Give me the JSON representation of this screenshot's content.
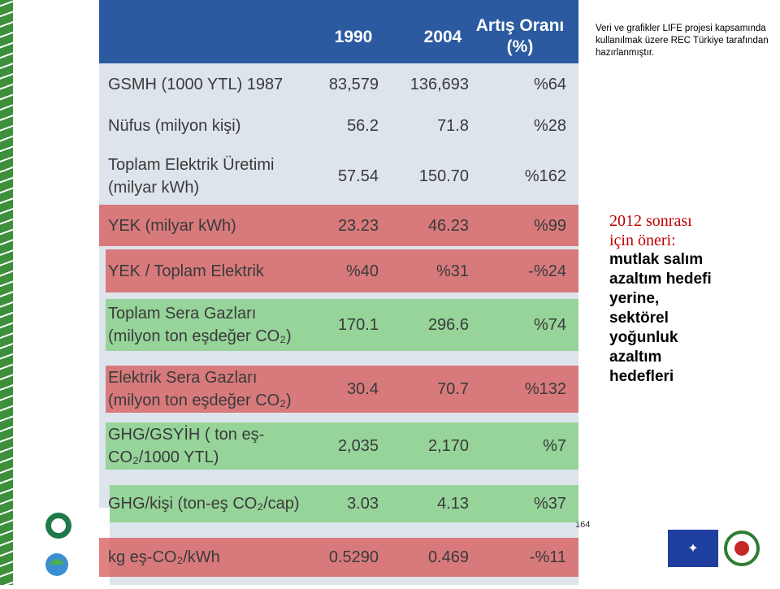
{
  "header": {
    "col1": "1990",
    "col2": "2004",
    "col3_lines": [
      "Artış Oranı",
      "(%)"
    ]
  },
  "rows": [
    {
      "label_lines": [
        "GSMH (1000 YTL) 1987"
      ],
      "v1990": "83,579",
      "v2004": "136,693",
      "change": "%64",
      "highlight": "none"
    },
    {
      "label_lines": [
        "Nüfus (milyon kişi)"
      ],
      "v1990": "56.2",
      "v2004": "71.8",
      "change": "%28",
      "highlight": "none"
    },
    {
      "label_lines": [
        "Toplam Elektrik Üretimi",
        "(milyar kWh)"
      ],
      "v1990": "57.54",
      "v2004": "150.70",
      "change": "%162",
      "highlight": "none"
    },
    {
      "label_lines": [
        "YEK (milyar kWh)"
      ],
      "v1990": "23.23",
      "v2004": "46.23",
      "change": "%99",
      "highlight": "red"
    },
    {
      "label_lines": [
        "YEK / Toplam Elektrik"
      ],
      "v1990": "%40",
      "v2004": "%31",
      "change": "-%24",
      "highlight": "red"
    },
    {
      "label_lines": [
        "Toplam Sera Gazları",
        "(milyon ton eşdeğer CO₂)"
      ],
      "v1990": "170.1",
      "v2004": "296.6",
      "change": "%74",
      "highlight": "green"
    },
    {
      "label_lines": [
        "Elektrik Sera Gazları",
        "(milyon ton eşdeğer CO₂)"
      ],
      "v1990": "30.4",
      "v2004": "70.7",
      "change": "%132",
      "highlight": "red"
    },
    {
      "label_lines": [
        "GHG/GSYİH ( ton eş-",
        "CO₂/1000 YTL)"
      ],
      "v1990": "2,035",
      "v2004": "2,170",
      "change": "%7",
      "highlight": "green"
    },
    {
      "label_lines": [
        "GHG/kişi (ton-eş CO₂/cap)"
      ],
      "v1990": "3.03",
      "v2004": "4.13",
      "change": "%37",
      "highlight": "green"
    },
    {
      "label_lines": [
        "kg eş-CO₂/kWh"
      ],
      "v1990": "0.5290",
      "v2004": "0.469",
      "change": "-%11",
      "highlight": "red"
    }
  ],
  "note_lines": [
    "Veri ve grafikler LIFE projesi kapsamında",
    "kullanılmak üzere REC Türkiye tarafından",
    "hazırlanmıştır."
  ],
  "proposal": {
    "title_lines": [
      "2012 sonrası",
      "için öneri:"
    ],
    "body_lines": [
      "mutlak salım",
      "azaltım hedefi",
      "yerine,",
      "sektörel",
      "yoğunluk",
      "azaltım",
      "hedefleri"
    ]
  },
  "page_number": "164"
}
